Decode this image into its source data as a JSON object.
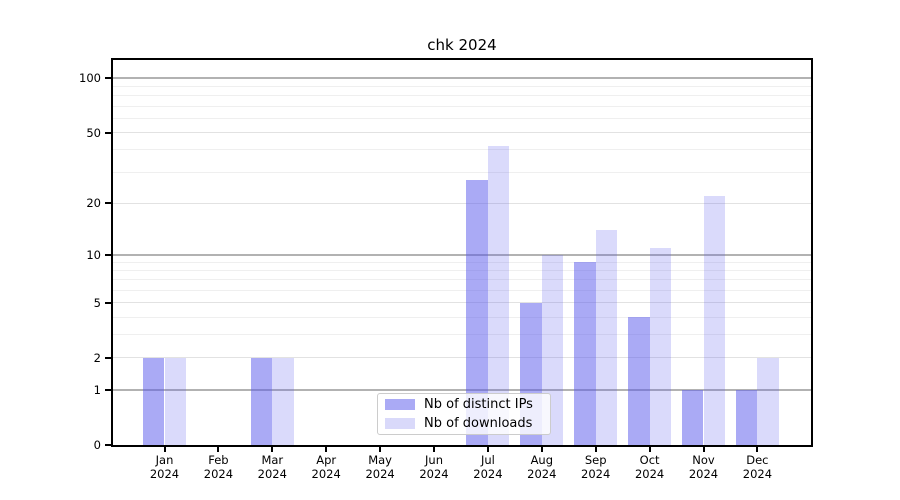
{
  "chart_data": {
    "type": "bar",
    "title": "chk 2024",
    "categories": [
      "Jan",
      "Feb",
      "Mar",
      "Apr",
      "May",
      "Jun",
      "Jul",
      "Aug",
      "Sep",
      "Oct",
      "Nov",
      "Dec"
    ],
    "year_label": "2024",
    "series": [
      {
        "name": "Nb of distinct IPs",
        "color": "rgba(85,85,235,0.5)",
        "legend_color": "#aaaaf5",
        "values": [
          2,
          0,
          2,
          0,
          0,
          0,
          27,
          5,
          9,
          4,
          1,
          1
        ]
      },
      {
        "name": "Nb of downloads",
        "color": "rgba(85,85,235,0.22)",
        "legend_color": "#d9d9fa",
        "values": [
          2,
          0,
          2,
          0,
          0,
          0,
          42,
          10,
          14,
          11,
          22,
          2
        ]
      }
    ],
    "yscale": "log1p",
    "ylim": [
      0,
      126
    ],
    "yticks": [
      0,
      1,
      2,
      5,
      10,
      20,
      50,
      100
    ],
    "gridlines": {
      "major": [
        1,
        10,
        100
      ],
      "submajor": [
        2,
        5,
        20,
        50
      ],
      "minor": [
        3,
        4,
        6,
        7,
        8,
        9,
        30,
        40,
        60,
        70,
        80,
        90
      ]
    },
    "legend_position": "inside-bottom-center",
    "grid": "on"
  }
}
